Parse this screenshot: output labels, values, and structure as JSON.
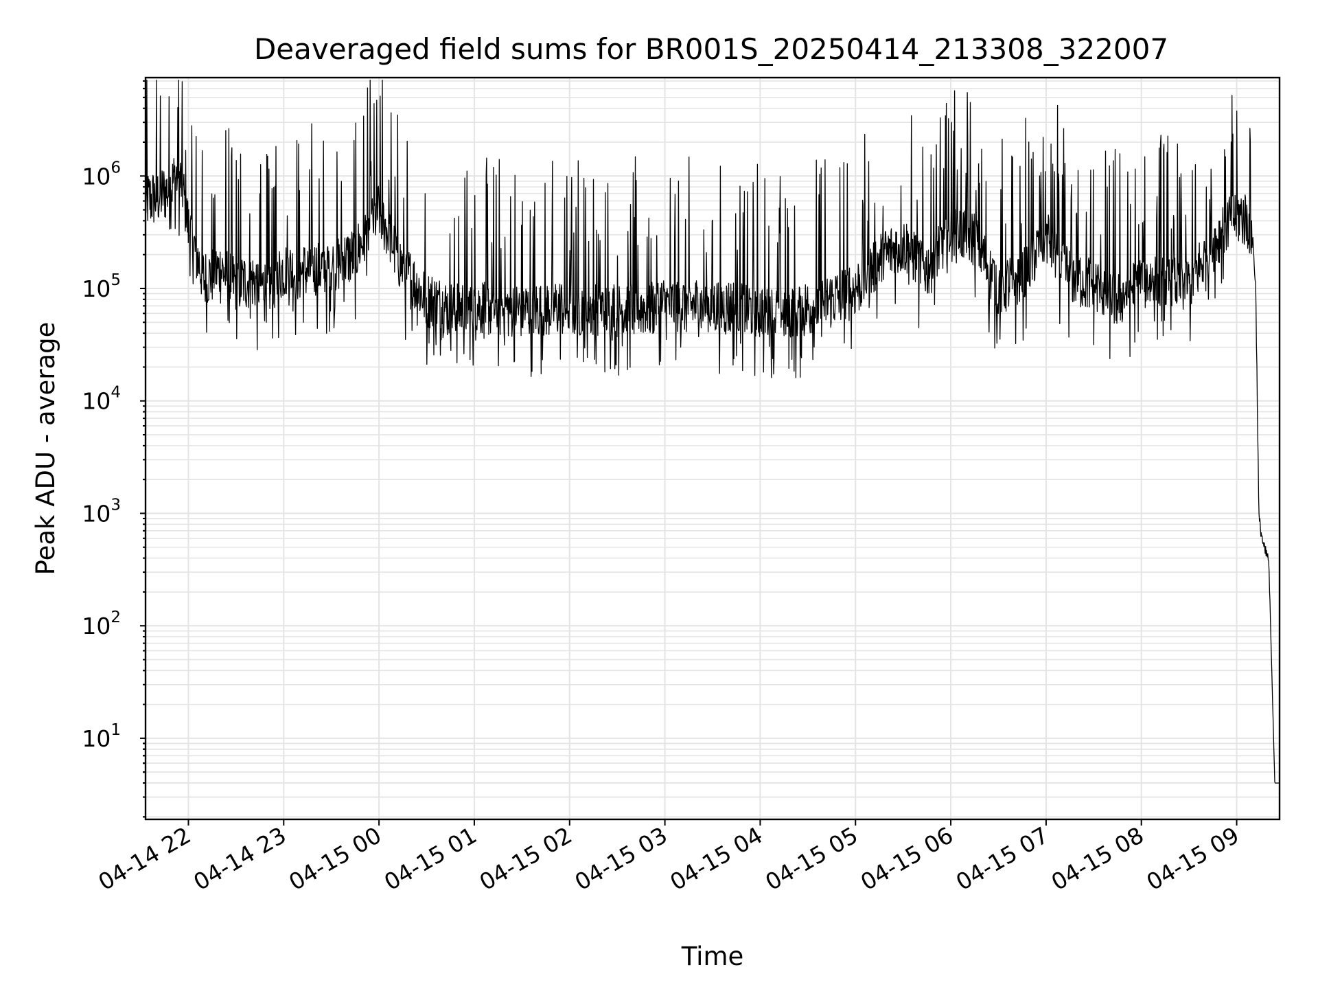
{
  "chart_data": {
    "type": "line",
    "title": "Deaveraged field sums for BR001S_20250414_213308_322007",
    "xlabel": "Time",
    "ylabel": "Peak ADU - average",
    "yscale": "log",
    "ylim": [
      1.9,
      7500000
    ],
    "xlim": [
      "04-14 21:33",
      "04-15 09:27"
    ],
    "grid": true,
    "line_color": "#000000",
    "x_ticks": [
      "04-14 22",
      "04-14 23",
      "04-15 00",
      "04-15 01",
      "04-15 02",
      "04-15 03",
      "04-15 04",
      "04-15 05",
      "04-15 06",
      "04-15 07",
      "04-15 08",
      "04-15 09"
    ],
    "y_ticks": [
      {
        "base": "10",
        "exp": "1",
        "value": 10
      },
      {
        "base": "10",
        "exp": "2",
        "value": 100
      },
      {
        "base": "10",
        "exp": "3",
        "value": 1000
      },
      {
        "base": "10",
        "exp": "4",
        "value": 10000
      },
      {
        "base": "10",
        "exp": "5",
        "value": 100000
      },
      {
        "base": "10",
        "exp": "6",
        "value": 1000000
      }
    ],
    "series": [
      {
        "x": [
          "04-14 21:33",
          "04-14 21:40",
          "04-14 21:48",
          "04-14 21:52",
          "04-14 21:56",
          "04-14 22:00",
          "04-14 22:05",
          "04-14 22:10",
          "04-14 22:20",
          "04-14 22:30",
          "04-14 22:40",
          "04-14 22:50",
          "04-14 23:00",
          "04-14 23:10",
          "04-14 23:20",
          "04-14 23:30",
          "04-14 23:45",
          "04-15 00:00",
          "04-15 00:15",
          "04-15 00:30",
          "04-15 00:45",
          "04-15 01:00",
          "04-15 01:30",
          "04-15 02:00",
          "04-15 02:30",
          "04-15 02:55",
          "04-15 03:00",
          "04-15 03:30",
          "04-15 04:00",
          "04-15 04:20",
          "04-15 04:40",
          "04-15 05:00",
          "04-15 05:15",
          "04-15 05:30",
          "04-15 05:45",
          "04-15 06:00",
          "04-15 06:15",
          "04-15 06:30",
          "04-15 06:45",
          "04-15 07:00",
          "04-15 07:15",
          "04-15 07:30",
          "04-15 07:45",
          "04-15 08:00",
          "04-15 08:30",
          "04-15 08:55",
          "04-15 09:02",
          "04-15 09:07",
          "04-15 09:10",
          "04-15 09:12",
          "04-15 09:13",
          "04-15 09:14",
          "04-15 09:17",
          "04-15 09:18",
          "04-15 09:20",
          "04-15 09:21",
          "04-15 09:24",
          "04-15 09:27"
        ],
        "values": [
          600000,
          650000,
          750000,
          1000000,
          850000,
          350000,
          200000,
          120000,
          150000,
          110000,
          120000,
          100000,
          150000,
          140000,
          150000,
          160000,
          200000,
          500000,
          150000,
          80000,
          65000,
          70000,
          65000,
          68000,
          65000,
          70000,
          72000,
          70000,
          65000,
          60000,
          75000,
          100000,
          180000,
          250000,
          150000,
          350000,
          280000,
          100000,
          130000,
          300000,
          130000,
          110000,
          80000,
          120000,
          110000,
          400000,
          450000,
          400000,
          300000,
          100000,
          10000,
          900,
          500,
          450,
          400,
          150,
          4,
          4
        ]
      }
    ]
  }
}
